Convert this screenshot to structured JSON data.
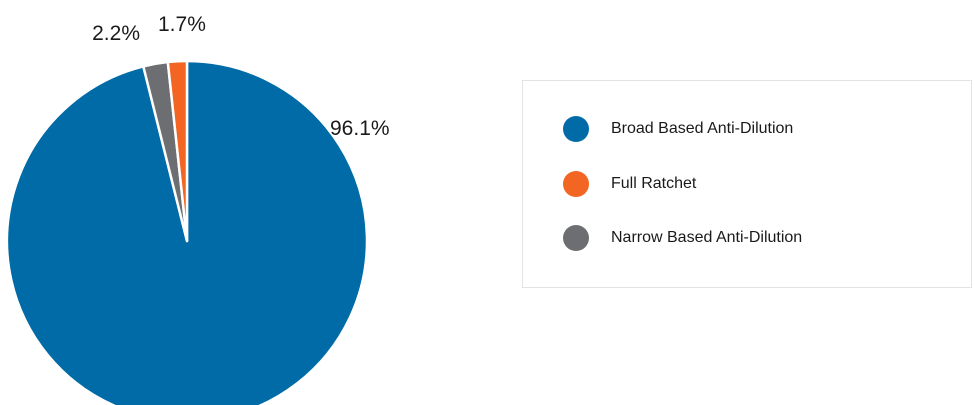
{
  "chart_data": {
    "type": "pie",
    "categories": [
      "Broad Based Anti-Dilution",
      "Full Ratchet",
      "Narrow Based Anti-Dilution"
    ],
    "values": [
      96.1,
      1.7,
      2.2
    ],
    "value_labels": [
      "96.1%",
      "1.7%",
      "2.2%"
    ],
    "colors": [
      "#006ba6",
      "#f26522",
      "#6d6e71"
    ],
    "legend_placement": "right",
    "title": ""
  },
  "legend": {
    "items": [
      {
        "label": "Broad Based Anti-Dilution",
        "color": "#006ba6"
      },
      {
        "label": "Full Ratchet",
        "color": "#f26522"
      },
      {
        "label": "Narrow Based Anti-Dilution",
        "color": "#6d6e71"
      }
    ]
  }
}
